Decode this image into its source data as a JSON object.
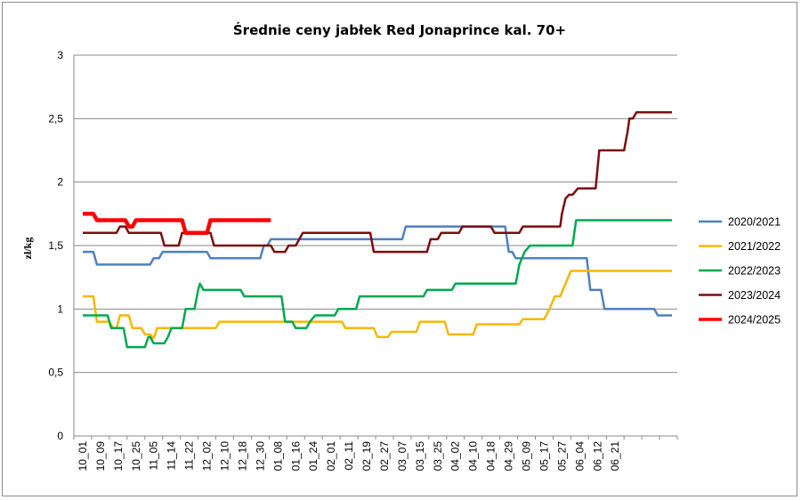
{
  "chart_data": {
    "type": "line",
    "title": "Średnie ceny jabłek Red Jonaprince kal. 70+",
    "ylabel": "zł/kg",
    "xlabel": "",
    "ylim": [
      0,
      3
    ],
    "y_ticks": [
      "0",
      "0,5",
      "1",
      "1,5",
      "2",
      "2,5",
      "3"
    ],
    "x_ticks": [
      "10_01",
      "10_09",
      "10_17",
      "10_25",
      "11_05",
      "11_14",
      "11_22",
      "12_02",
      "12_10",
      "12_18",
      "12_30",
      "01_08",
      "01_16",
      "01_24",
      "02_01",
      "02_11",
      "02_19",
      "02_27",
      "03_07",
      "03_15",
      "03_25",
      "04_02",
      "04_10",
      "04_18",
      "04_29",
      "05_09",
      "05_17",
      "05_27",
      "06_04",
      "06_12",
      "06_21"
    ],
    "x_count": 34,
    "grid": "horizontal",
    "legend_position": "right",
    "series": [
      {
        "name": "2020/2021",
        "color": "#4f81bd",
        "width": 2.5,
        "points": [
          [
            0,
            1.45
          ],
          [
            0.6,
            1.45
          ],
          [
            0.8,
            1.35
          ],
          [
            3.8,
            1.35
          ],
          [
            4.0,
            1.4
          ],
          [
            4.3,
            1.4
          ],
          [
            4.5,
            1.45
          ],
          [
            7.0,
            1.45
          ],
          [
            7.2,
            1.4
          ],
          [
            10.0,
            1.4
          ],
          [
            10.2,
            1.5
          ],
          [
            10.4,
            1.5
          ],
          [
            10.6,
            1.55
          ],
          [
            18.0,
            1.55
          ],
          [
            18.2,
            1.65
          ],
          [
            23.8,
            1.65
          ],
          [
            24.0,
            1.45
          ],
          [
            24.2,
            1.45
          ],
          [
            24.4,
            1.4
          ],
          [
            28.4,
            1.4
          ],
          [
            28.6,
            1.15
          ],
          [
            29.2,
            1.15
          ],
          [
            29.4,
            1.0
          ],
          [
            32.2,
            1.0
          ],
          [
            32.4,
            0.95
          ],
          [
            33.2,
            0.95
          ]
        ]
      },
      {
        "name": "2021/2022",
        "color": "#f5b800",
        "width": 2.5,
        "points": [
          [
            0,
            1.1
          ],
          [
            0.6,
            1.1
          ],
          [
            0.8,
            0.9
          ],
          [
            1.5,
            0.9
          ],
          [
            1.7,
            0.85
          ],
          [
            1.9,
            0.85
          ],
          [
            2.1,
            0.95
          ],
          [
            2.6,
            0.95
          ],
          [
            2.8,
            0.85
          ],
          [
            3.3,
            0.85
          ],
          [
            3.5,
            0.8
          ],
          [
            3.8,
            0.8
          ],
          [
            4.0,
            0.77
          ],
          [
            4.2,
            0.85
          ],
          [
            7.5,
            0.85
          ],
          [
            7.7,
            0.9
          ],
          [
            14.6,
            0.9
          ],
          [
            14.8,
            0.85
          ],
          [
            16.4,
            0.85
          ],
          [
            16.6,
            0.78
          ],
          [
            17.2,
            0.78
          ],
          [
            17.4,
            0.82
          ],
          [
            18.8,
            0.82
          ],
          [
            19.0,
            0.9
          ],
          [
            20.4,
            0.9
          ],
          [
            20.6,
            0.8
          ],
          [
            22.0,
            0.8
          ],
          [
            22.2,
            0.88
          ],
          [
            24.6,
            0.88
          ],
          [
            24.8,
            0.92
          ],
          [
            26.0,
            0.92
          ],
          [
            26.3,
            1.0
          ],
          [
            26.6,
            1.1
          ],
          [
            26.9,
            1.1
          ],
          [
            27.2,
            1.2
          ],
          [
            27.5,
            1.3
          ],
          [
            33.2,
            1.3
          ]
        ]
      },
      {
        "name": "2022/2023",
        "color": "#00a84f",
        "width": 2.5,
        "points": [
          [
            0,
            0.95
          ],
          [
            1.4,
            0.95
          ],
          [
            1.6,
            0.85
          ],
          [
            2.3,
            0.85
          ],
          [
            2.5,
            0.7
          ],
          [
            3.5,
            0.7
          ],
          [
            3.7,
            0.78
          ],
          [
            3.8,
            0.78
          ],
          [
            4.0,
            0.73
          ],
          [
            4.6,
            0.73
          ],
          [
            4.8,
            0.78
          ],
          [
            5.0,
            0.85
          ],
          [
            5.6,
            0.85
          ],
          [
            5.8,
            1.0
          ],
          [
            6.3,
            1.0
          ],
          [
            6.5,
            1.15
          ],
          [
            6.6,
            1.2
          ],
          [
            6.8,
            1.15
          ],
          [
            8.9,
            1.15
          ],
          [
            9.1,
            1.1
          ],
          [
            11.2,
            1.1
          ],
          [
            11.4,
            0.9
          ],
          [
            11.8,
            0.9
          ],
          [
            12.0,
            0.85
          ],
          [
            12.6,
            0.85
          ],
          [
            12.8,
            0.9
          ],
          [
            13.1,
            0.95
          ],
          [
            14.2,
            0.95
          ],
          [
            14.4,
            1.0
          ],
          [
            15.4,
            1.0
          ],
          [
            15.6,
            1.1
          ],
          [
            19.2,
            1.1
          ],
          [
            19.4,
            1.15
          ],
          [
            20.8,
            1.15
          ],
          [
            21.0,
            1.2
          ],
          [
            24.4,
            1.2
          ],
          [
            24.6,
            1.35
          ],
          [
            24.9,
            1.45
          ],
          [
            25.2,
            1.5
          ],
          [
            27.6,
            1.5
          ],
          [
            27.8,
            1.7
          ],
          [
            33.2,
            1.7
          ]
        ]
      },
      {
        "name": "2023/2024",
        "color": "#7b0e0e",
        "width": 2.5,
        "points": [
          [
            0,
            1.6
          ],
          [
            1.9,
            1.6
          ],
          [
            2.1,
            1.65
          ],
          [
            2.4,
            1.65
          ],
          [
            2.6,
            1.6
          ],
          [
            4.4,
            1.6
          ],
          [
            4.6,
            1.5
          ],
          [
            5.4,
            1.5
          ],
          [
            5.6,
            1.6
          ],
          [
            7.2,
            1.6
          ],
          [
            7.4,
            1.5
          ],
          [
            10.6,
            1.5
          ],
          [
            10.8,
            1.45
          ],
          [
            11.4,
            1.45
          ],
          [
            11.6,
            1.5
          ],
          [
            12.0,
            1.5
          ],
          [
            12.2,
            1.55
          ],
          [
            12.4,
            1.6
          ],
          [
            16.2,
            1.6
          ],
          [
            16.4,
            1.45
          ],
          [
            19.4,
            1.45
          ],
          [
            19.6,
            1.55
          ],
          [
            20.0,
            1.55
          ],
          [
            20.2,
            1.6
          ],
          [
            21.2,
            1.6
          ],
          [
            21.4,
            1.65
          ],
          [
            23.0,
            1.65
          ],
          [
            23.2,
            1.6
          ],
          [
            24.6,
            1.6
          ],
          [
            24.8,
            1.65
          ],
          [
            26.9,
            1.65
          ],
          [
            27.0,
            1.75
          ],
          [
            27.2,
            1.87
          ],
          [
            27.4,
            1.9
          ],
          [
            27.6,
            1.9
          ],
          [
            27.9,
            1.95
          ],
          [
            28.9,
            1.95
          ],
          [
            29.1,
            2.25
          ],
          [
            30.5,
            2.25
          ],
          [
            30.7,
            2.4
          ],
          [
            30.8,
            2.5
          ],
          [
            31.0,
            2.5
          ],
          [
            31.2,
            2.55
          ],
          [
            33.2,
            2.55
          ]
        ]
      },
      {
        "name": "2024/2025",
        "color": "#ff0000",
        "width": 4.5,
        "points": [
          [
            0,
            1.75
          ],
          [
            0.6,
            1.75
          ],
          [
            0.8,
            1.7
          ],
          [
            2.4,
            1.7
          ],
          [
            2.6,
            1.65
          ],
          [
            2.8,
            1.65
          ],
          [
            3.0,
            1.7
          ],
          [
            5.6,
            1.7
          ],
          [
            5.8,
            1.6
          ],
          [
            7.0,
            1.6
          ],
          [
            7.2,
            1.7
          ],
          [
            10.6,
            1.7
          ]
        ]
      }
    ]
  }
}
